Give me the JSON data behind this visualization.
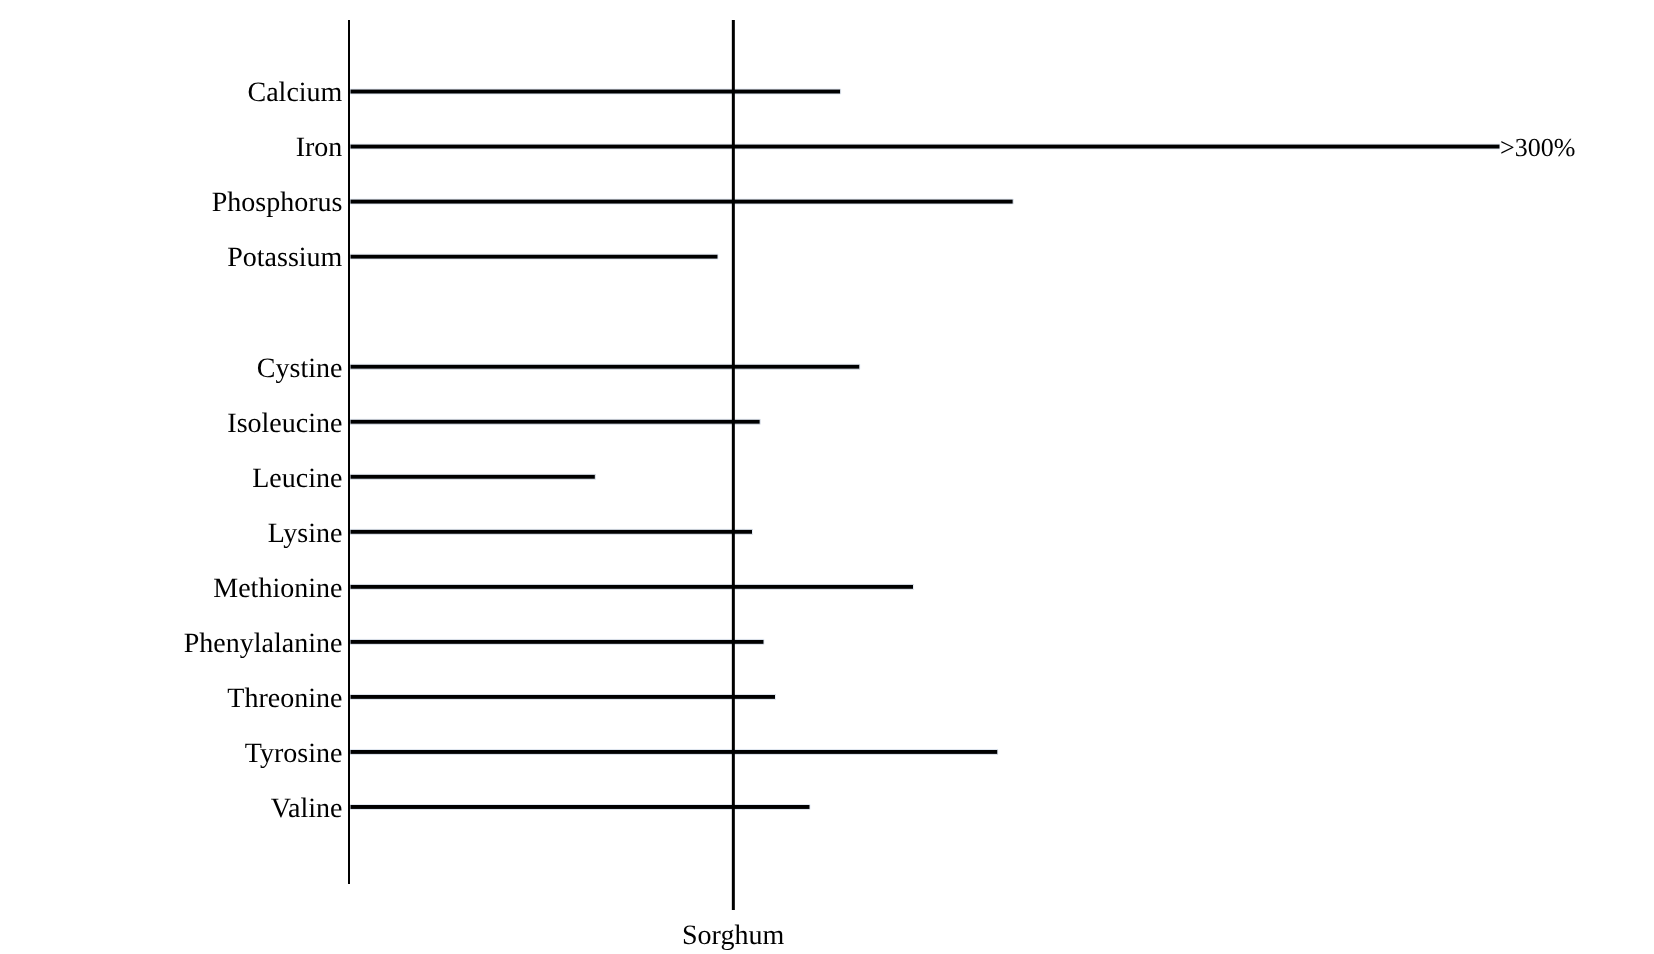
{
  "chart_data": {
    "type": "bar",
    "orientation": "horizontal",
    "xlim": [
      0,
      300
    ],
    "tick_labels": "y",
    "categories": [
      "Calcium",
      "Iron",
      "Phosphorus",
      "Potassium",
      null,
      "Cystine",
      "Isoleucine",
      "Leucine",
      "Lysine",
      "Methionine",
      "Phenylalanine",
      "Threonine",
      "Tyrosine",
      "Valine"
    ],
    "series": [
      {
        "color": "#000000",
        "values": [
          128,
          300,
          173,
          96,
          null,
          133,
          107,
          64,
          105,
          147,
          108,
          111,
          169,
          120
        ],
        "value_labels": [
          null,
          ">300%",
          null,
          null,
          null,
          null,
          null,
          null,
          null,
          null,
          null,
          null,
          null,
          null
        ]
      }
    ],
    "ref_lines": [
      {
        "axis": "x",
        "value": 100,
        "label": "Sorghum",
        "color": "#000000"
      }
    ]
  }
}
